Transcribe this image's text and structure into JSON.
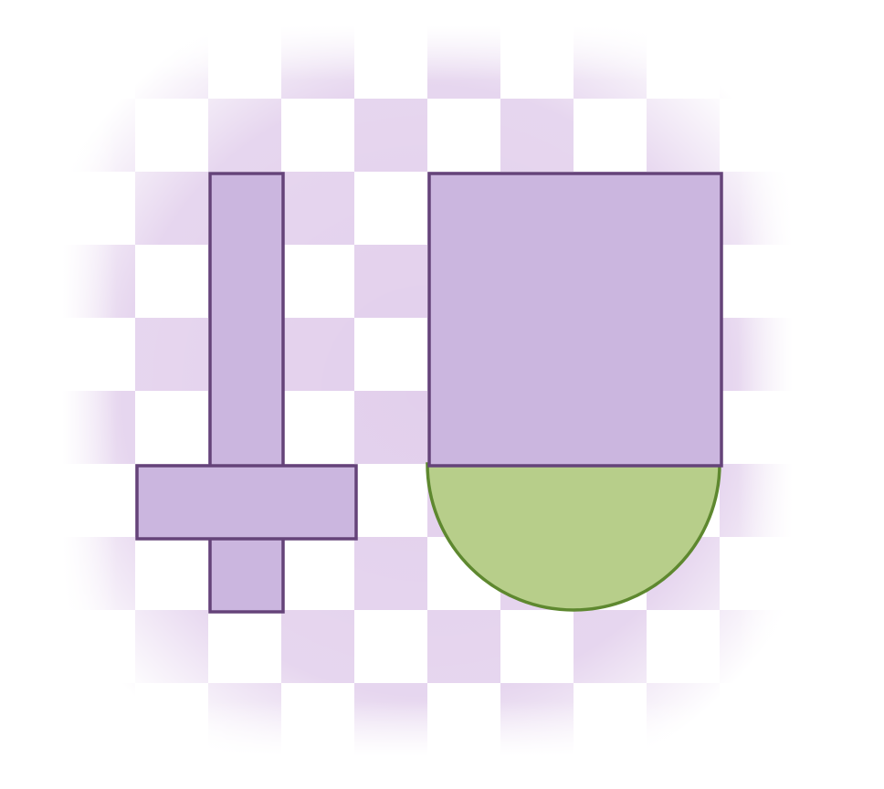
{
  "colors": {
    "background": "#ffffff",
    "checker": "#d8bfe6",
    "purple_fill": "#cbb6df",
    "purple_stroke": "#654379",
    "green_fill": "#b7ce8a",
    "green_stroke": "#5e882f"
  },
  "grid": {
    "columns": 10,
    "rows": 10
  },
  "shapes": [
    {
      "name": "cross-vertical-bar",
      "kind": "rect"
    },
    {
      "name": "cross-horizontal-bar",
      "kind": "rect"
    },
    {
      "name": "large-square",
      "kind": "rect"
    },
    {
      "name": "half-disc",
      "kind": "semicircle"
    }
  ]
}
